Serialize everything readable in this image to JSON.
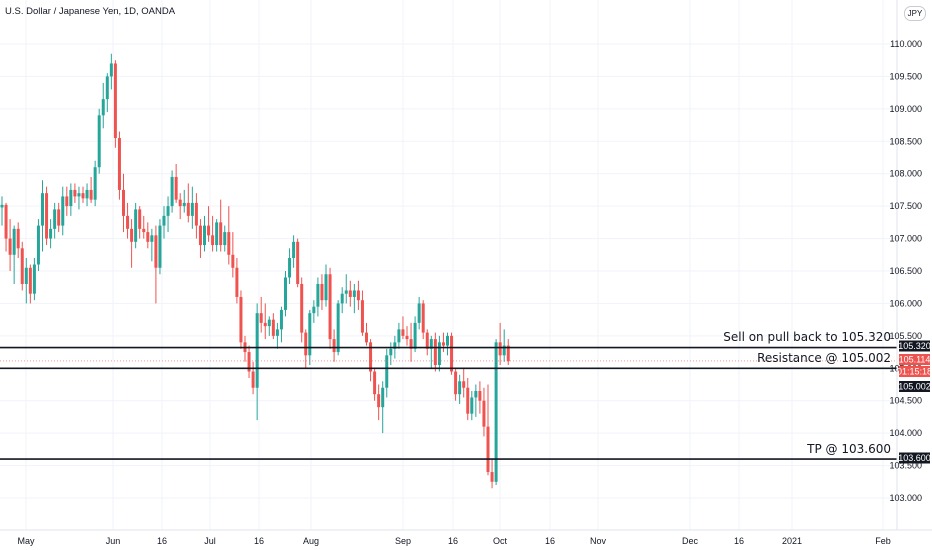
{
  "header": {
    "title": "U.S. Dollar / Japanese Yen, 1D, OANDA",
    "currency_badge": "JPY"
  },
  "colors": {
    "up": "#26a69a",
    "down": "#ef5350",
    "hline": "#131722",
    "price_badge": "#ef5350",
    "level_badge": "#131722"
  },
  "annotations": {
    "sell": "Sell on pull back to 105.320",
    "resistance": "Resistance @ 105.002",
    "tp": "TP @ 103.600"
  },
  "price_badges": {
    "sell_level": "105.320",
    "current_price": "105.114",
    "countdown": "01:15:18",
    "resistance_level": "105.002",
    "tp_level": "103.600"
  },
  "chart_data": {
    "type": "candlestick",
    "title": "U.S. Dollar / Japanese Yen, 1D, OANDA",
    "ylim": [
      102.7,
      110.25
    ],
    "y_ticks": [
      "110.000",
      "109.500",
      "109.000",
      "108.500",
      "108.000",
      "107.500",
      "107.000",
      "106.500",
      "106.000",
      "105.500",
      "105.000",
      "104.500",
      "104.000",
      "103.500",
      "103.000"
    ],
    "x_ticks": [
      "May",
      "Jun",
      "16",
      "Jul",
      "16",
      "Aug",
      "Sep",
      "16",
      "Oct",
      "16",
      "Nov",
      "Dec",
      "16",
      "2021",
      "Feb"
    ],
    "grid": true,
    "horizontal_lines": [
      105.32,
      105.0,
      103.6
    ],
    "current_price": 105.114,
    "series": [
      {
        "values": [
          {
            "o": 107.48,
            "h": 107.65,
            "l": 107.2,
            "c": 107.52
          },
          {
            "o": 107.52,
            "h": 107.55,
            "l": 106.8,
            "c": 107.0
          },
          {
            "o": 107.0,
            "h": 107.3,
            "l": 106.5,
            "c": 106.75
          },
          {
            "o": 106.75,
            "h": 107.2,
            "l": 106.3,
            "c": 107.15
          },
          {
            "o": 107.15,
            "h": 107.25,
            "l": 106.7,
            "c": 106.85
          },
          {
            "o": 106.85,
            "h": 106.95,
            "l": 106.2,
            "c": 106.3
          },
          {
            "o": 106.3,
            "h": 106.7,
            "l": 106.0,
            "c": 106.55
          },
          {
            "o": 106.55,
            "h": 106.6,
            "l": 106.0,
            "c": 106.15
          },
          {
            "o": 106.15,
            "h": 106.7,
            "l": 106.05,
            "c": 106.6
          },
          {
            "o": 106.6,
            "h": 107.3,
            "l": 106.5,
            "c": 107.2
          },
          {
            "o": 107.2,
            "h": 107.9,
            "l": 106.8,
            "c": 107.7
          },
          {
            "o": 107.7,
            "h": 107.8,
            "l": 106.9,
            "c": 107.0
          },
          {
            "o": 107.0,
            "h": 107.3,
            "l": 106.85,
            "c": 107.15
          },
          {
            "o": 107.15,
            "h": 107.55,
            "l": 107.0,
            "c": 107.45
          },
          {
            "o": 107.45,
            "h": 107.55,
            "l": 107.1,
            "c": 107.2
          },
          {
            "o": 107.2,
            "h": 107.8,
            "l": 107.05,
            "c": 107.65
          },
          {
            "o": 107.65,
            "h": 107.8,
            "l": 107.35,
            "c": 107.5
          },
          {
            "o": 107.5,
            "h": 107.85,
            "l": 107.35,
            "c": 107.75
          },
          {
            "o": 107.75,
            "h": 107.85,
            "l": 107.55,
            "c": 107.65
          },
          {
            "o": 107.65,
            "h": 107.8,
            "l": 107.45,
            "c": 107.7
          },
          {
            "o": 107.7,
            "h": 107.8,
            "l": 107.55,
            "c": 107.62
          },
          {
            "o": 107.62,
            "h": 107.85,
            "l": 107.5,
            "c": 107.75
          },
          {
            "o": 107.75,
            "h": 107.95,
            "l": 107.55,
            "c": 107.6
          },
          {
            "o": 107.6,
            "h": 108.2,
            "l": 107.5,
            "c": 108.1
          },
          {
            "o": 108.1,
            "h": 109.0,
            "l": 108.0,
            "c": 108.9
          },
          {
            "o": 108.9,
            "h": 109.4,
            "l": 108.7,
            "c": 109.15
          },
          {
            "o": 109.15,
            "h": 109.55,
            "l": 108.95,
            "c": 109.5
          },
          {
            "o": 109.5,
            "h": 109.85,
            "l": 109.3,
            "c": 109.7
          },
          {
            "o": 109.7,
            "h": 109.75,
            "l": 108.4,
            "c": 108.55
          },
          {
            "o": 108.55,
            "h": 108.65,
            "l": 107.6,
            "c": 107.75
          },
          {
            "o": 107.75,
            "h": 108.0,
            "l": 107.1,
            "c": 107.35
          },
          {
            "o": 107.35,
            "h": 107.55,
            "l": 107.0,
            "c": 107.15
          },
          {
            "o": 107.15,
            "h": 107.3,
            "l": 106.55,
            "c": 106.95
          },
          {
            "o": 106.95,
            "h": 107.55,
            "l": 106.85,
            "c": 107.45
          },
          {
            "o": 107.45,
            "h": 107.5,
            "l": 107.0,
            "c": 107.15
          },
          {
            "o": 107.15,
            "h": 107.35,
            "l": 107.0,
            "c": 107.1
          },
          {
            "o": 107.1,
            "h": 107.25,
            "l": 106.85,
            "c": 106.95
          },
          {
            "o": 106.95,
            "h": 107.15,
            "l": 106.65,
            "c": 107.05
          },
          {
            "o": 107.05,
            "h": 107.2,
            "l": 106.0,
            "c": 106.55
          },
          {
            "o": 106.55,
            "h": 107.3,
            "l": 106.45,
            "c": 107.2
          },
          {
            "o": 107.2,
            "h": 107.5,
            "l": 107.0,
            "c": 107.35
          },
          {
            "o": 107.35,
            "h": 107.65,
            "l": 107.1,
            "c": 107.5
          },
          {
            "o": 107.5,
            "h": 108.05,
            "l": 107.4,
            "c": 107.95
          },
          {
            "o": 107.95,
            "h": 108.15,
            "l": 107.55,
            "c": 107.6
          },
          {
            "o": 107.6,
            "h": 107.7,
            "l": 107.3,
            "c": 107.5
          },
          {
            "o": 107.5,
            "h": 107.75,
            "l": 107.4,
            "c": 107.55
          },
          {
            "o": 107.55,
            "h": 107.85,
            "l": 107.25,
            "c": 107.35
          },
          {
            "o": 107.35,
            "h": 107.8,
            "l": 107.15,
            "c": 107.55
          },
          {
            "o": 107.55,
            "h": 107.7,
            "l": 107.0,
            "c": 107.2
          },
          {
            "o": 107.2,
            "h": 107.3,
            "l": 106.7,
            "c": 106.9
          },
          {
            "o": 106.9,
            "h": 107.35,
            "l": 106.8,
            "c": 107.2
          },
          {
            "o": 107.2,
            "h": 107.5,
            "l": 106.95,
            "c": 107.05
          },
          {
            "o": 107.05,
            "h": 107.35,
            "l": 106.8,
            "c": 106.9
          },
          {
            "o": 106.9,
            "h": 107.3,
            "l": 106.8,
            "c": 107.25
          },
          {
            "o": 107.25,
            "h": 107.6,
            "l": 106.8,
            "c": 106.9
          },
          {
            "o": 106.9,
            "h": 107.2,
            "l": 106.8,
            "c": 107.1
          },
          {
            "o": 107.1,
            "h": 107.5,
            "l": 106.6,
            "c": 106.75
          },
          {
            "o": 106.75,
            "h": 107.1,
            "l": 106.4,
            "c": 106.55
          },
          {
            "o": 106.55,
            "h": 106.7,
            "l": 106.0,
            "c": 106.1
          },
          {
            "o": 106.1,
            "h": 106.2,
            "l": 105.3,
            "c": 105.4
          },
          {
            "o": 105.4,
            "h": 105.5,
            "l": 105.1,
            "c": 105.25
          },
          {
            "o": 105.25,
            "h": 105.35,
            "l": 104.85,
            "c": 104.95
          },
          {
            "o": 104.95,
            "h": 105.1,
            "l": 104.6,
            "c": 104.7
          },
          {
            "o": 104.7,
            "h": 106.0,
            "l": 104.2,
            "c": 105.85
          },
          {
            "o": 105.85,
            "h": 106.1,
            "l": 105.55,
            "c": 105.7
          },
          {
            "o": 105.7,
            "h": 106.0,
            "l": 105.45,
            "c": 105.65
          },
          {
            "o": 105.65,
            "h": 105.8,
            "l": 105.5,
            "c": 105.75
          },
          {
            "o": 105.75,
            "h": 105.85,
            "l": 105.45,
            "c": 105.5
          },
          {
            "o": 105.5,
            "h": 105.7,
            "l": 105.3,
            "c": 105.6
          },
          {
            "o": 105.6,
            "h": 105.95,
            "l": 105.4,
            "c": 105.9
          },
          {
            "o": 105.9,
            "h": 106.5,
            "l": 105.8,
            "c": 106.4
          },
          {
            "o": 106.4,
            "h": 106.85,
            "l": 106.3,
            "c": 106.7
          },
          {
            "o": 106.7,
            "h": 107.05,
            "l": 106.55,
            "c": 106.95
          },
          {
            "o": 106.95,
            "h": 107.0,
            "l": 106.25,
            "c": 106.3
          },
          {
            "o": 106.3,
            "h": 106.4,
            "l": 105.4,
            "c": 105.55
          },
          {
            "o": 105.55,
            "h": 105.6,
            "l": 105.0,
            "c": 105.2
          },
          {
            "o": 105.2,
            "h": 105.9,
            "l": 105.05,
            "c": 105.85
          },
          {
            "o": 105.85,
            "h": 106.05,
            "l": 105.7,
            "c": 105.95
          },
          {
            "o": 105.95,
            "h": 106.4,
            "l": 105.8,
            "c": 106.3
          },
          {
            "o": 106.3,
            "h": 106.45,
            "l": 105.9,
            "c": 106.05
          },
          {
            "o": 106.05,
            "h": 106.6,
            "l": 105.95,
            "c": 106.45
          },
          {
            "o": 106.45,
            "h": 106.55,
            "l": 105.3,
            "c": 105.45
          },
          {
            "o": 105.45,
            "h": 105.6,
            "l": 105.1,
            "c": 105.25
          },
          {
            "o": 105.25,
            "h": 106.05,
            "l": 105.2,
            "c": 106.0
          },
          {
            "o": 106.0,
            "h": 106.25,
            "l": 105.85,
            "c": 106.15
          },
          {
            "o": 106.15,
            "h": 106.45,
            "l": 106.0,
            "c": 106.2
          },
          {
            "o": 106.2,
            "h": 106.35,
            "l": 105.95,
            "c": 106.1
          },
          {
            "o": 106.1,
            "h": 106.3,
            "l": 105.85,
            "c": 106.2
          },
          {
            "o": 106.2,
            "h": 106.35,
            "l": 105.9,
            "c": 106.05
          },
          {
            "o": 106.05,
            "h": 106.2,
            "l": 105.5,
            "c": 105.55
          },
          {
            "o": 105.55,
            "h": 105.7,
            "l": 105.35,
            "c": 105.4
          },
          {
            "o": 105.4,
            "h": 105.45,
            "l": 104.8,
            "c": 104.95
          },
          {
            "o": 104.95,
            "h": 105.0,
            "l": 104.5,
            "c": 104.6
          },
          {
            "o": 104.6,
            "h": 104.75,
            "l": 104.2,
            "c": 104.4
          },
          {
            "o": 104.4,
            "h": 104.8,
            "l": 104.0,
            "c": 104.7
          },
          {
            "o": 104.7,
            "h": 105.3,
            "l": 104.55,
            "c": 105.2
          },
          {
            "o": 105.2,
            "h": 105.4,
            "l": 105.05,
            "c": 105.3
          },
          {
            "o": 105.3,
            "h": 105.5,
            "l": 105.15,
            "c": 105.4
          },
          {
            "o": 105.4,
            "h": 105.7,
            "l": 105.3,
            "c": 105.6
          },
          {
            "o": 105.6,
            "h": 105.8,
            "l": 105.45,
            "c": 105.5
          },
          {
            "o": 105.5,
            "h": 105.65,
            "l": 105.35,
            "c": 105.45
          },
          {
            "o": 105.45,
            "h": 105.7,
            "l": 105.1,
            "c": 105.3
          },
          {
            "o": 105.3,
            "h": 105.8,
            "l": 105.25,
            "c": 105.7
          },
          {
            "o": 105.7,
            "h": 106.1,
            "l": 105.6,
            "c": 106.0
          },
          {
            "o": 106.0,
            "h": 106.05,
            "l": 105.45,
            "c": 105.55
          },
          {
            "o": 105.55,
            "h": 105.6,
            "l": 105.2,
            "c": 105.3
          },
          {
            "o": 105.3,
            "h": 105.5,
            "l": 105.0,
            "c": 105.45
          },
          {
            "o": 105.45,
            "h": 105.55,
            "l": 104.95,
            "c": 105.05
          },
          {
            "o": 105.05,
            "h": 105.5,
            "l": 104.95,
            "c": 105.4
          },
          {
            "o": 105.4,
            "h": 105.55,
            "l": 105.25,
            "c": 105.35
          },
          {
            "o": 105.35,
            "h": 105.55,
            "l": 105.2,
            "c": 105.5
          },
          {
            "o": 105.5,
            "h": 105.55,
            "l": 104.9,
            "c": 104.95
          },
          {
            "o": 104.95,
            "h": 105.0,
            "l": 104.5,
            "c": 104.6
          },
          {
            "o": 104.6,
            "h": 104.9,
            "l": 104.45,
            "c": 104.8
          },
          {
            "o": 104.8,
            "h": 105.0,
            "l": 104.55,
            "c": 104.7
          },
          {
            "o": 104.7,
            "h": 104.85,
            "l": 104.2,
            "c": 104.3
          },
          {
            "o": 104.3,
            "h": 104.65,
            "l": 104.2,
            "c": 104.55
          },
          {
            "o": 104.55,
            "h": 104.75,
            "l": 104.25,
            "c": 104.65
          },
          {
            "o": 104.65,
            "h": 104.8,
            "l": 104.3,
            "c": 104.5
          },
          {
            "o": 104.5,
            "h": 104.7,
            "l": 103.95,
            "c": 104.1
          },
          {
            "o": 104.1,
            "h": 104.75,
            "l": 103.35,
            "c": 103.4
          },
          {
            "o": 103.4,
            "h": 103.6,
            "l": 103.15,
            "c": 103.25
          },
          {
            "o": 103.25,
            "h": 105.45,
            "l": 103.2,
            "c": 105.4
          },
          {
            "o": 105.4,
            "h": 105.7,
            "l": 105.05,
            "c": 105.2
          },
          {
            "o": 105.2,
            "h": 105.6,
            "l": 105.1,
            "c": 105.35
          },
          {
            "o": 105.35,
            "h": 105.45,
            "l": 105.05,
            "c": 105.11
          }
        ]
      }
    ]
  }
}
